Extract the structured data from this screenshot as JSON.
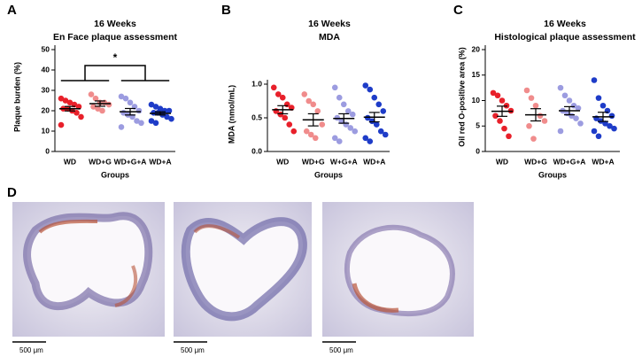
{
  "chart_data": [
    {
      "type": "dot",
      "panel": "A",
      "title": [
        "16 Weeks",
        "En Face plaque assessment"
      ],
      "y_label": "Plaque burden (%)",
      "x_label": "Groups",
      "categories": [
        "WD",
        "WD+G",
        "WD+G+A",
        "WD+A"
      ],
      "colors": [
        "#e8202a",
        "#f08c8c",
        "#9c9ce0",
        "#1e3cc8"
      ],
      "points": [
        [
          26,
          25,
          24,
          23,
          22,
          21,
          21,
          20,
          19,
          17,
          13
        ],
        [
          28,
          26,
          24,
          24,
          23,
          22,
          21,
          20
        ],
        [
          27,
          26,
          24,
          22,
          20,
          19,
          18,
          17,
          15,
          14,
          12
        ],
        [
          23,
          22,
          21,
          20,
          20,
          19,
          19,
          18,
          17,
          16,
          15,
          14
        ]
      ],
      "means": [
        21,
        23.5,
        19.5,
        18.7
      ],
      "sems": [
        1.1,
        1.3,
        1.6,
        0.8
      ],
      "ylim": [
        0,
        50
      ],
      "yticks": [
        0,
        10,
        20,
        30,
        40,
        50
      ],
      "significance": "*"
    },
    {
      "type": "dot",
      "panel": "B",
      "title": [
        "16 Weeks",
        "MDA"
      ],
      "y_label": "MDA (nmol/mL)",
      "x_label": "Groups",
      "categories": [
        "WD",
        "WD+G",
        "W+G+A",
        "WD+A"
      ],
      "colors": [
        "#e8202a",
        "#f08c8c",
        "#9c9ce0",
        "#1e3cc8"
      ],
      "points": [
        [
          0.95,
          0.85,
          0.8,
          0.7,
          0.65,
          0.6,
          0.55,
          0.5,
          0.4,
          0.3
        ],
        [
          0.85,
          0.75,
          0.7,
          0.6,
          0.4,
          0.3,
          0.25,
          0.2
        ],
        [
          0.95,
          0.8,
          0.7,
          0.6,
          0.55,
          0.5,
          0.45,
          0.4,
          0.35,
          0.3,
          0.2,
          0.15
        ],
        [
          0.98,
          0.92,
          0.8,
          0.7,
          0.6,
          0.5,
          0.45,
          0.4,
          0.3,
          0.25,
          0.2,
          0.15
        ]
      ],
      "means": [
        0.62,
        0.47,
        0.49,
        0.51
      ],
      "sems": [
        0.06,
        0.09,
        0.07,
        0.07
      ],
      "ylim": [
        0,
        1.0
      ],
      "yticks": [
        {
          "value": 0,
          "label": "0.0"
        },
        0.5,
        {
          "value": 1,
          "label": "1.0"
        }
      ]
    },
    {
      "type": "dot",
      "panel": "C",
      "title": [
        "16 Weeks",
        "Histological plaque assessment"
      ],
      "y_label": "Oil red O-positive area (%)",
      "x_label": "Groups",
      "categories": [
        "WD",
        "WD+G",
        "WD+G+A",
        "WD+A"
      ],
      "colors": [
        "#e8202a",
        "#f08c8c",
        "#9c9ce0",
        "#1e3cc8"
      ],
      "points": [
        [
          11.5,
          11,
          10,
          9,
          8,
          7,
          6,
          4.5,
          3
        ],
        [
          12,
          10.5,
          9,
          7,
          6,
          5,
          2.5
        ],
        [
          12.5,
          11,
          10,
          9,
          8.5,
          8,
          7.5,
          7,
          6.5,
          5.5,
          4
        ],
        [
          14,
          10.5,
          9,
          8,
          7,
          6.5,
          6,
          5.5,
          5,
          4.5,
          4,
          3
        ]
      ],
      "means": [
        7.9,
        7.2,
        8,
        6.8
      ],
      "sems": [
        1.0,
        1.2,
        0.8,
        0.9
      ],
      "ylim": [
        0,
        20
      ],
      "yticks": [
        0,
        5,
        10,
        15,
        20
      ]
    }
  ],
  "panel_d": {
    "letter": "D",
    "scale_labels": [
      "500 μm",
      "500 μm",
      "500 μm"
    ]
  }
}
